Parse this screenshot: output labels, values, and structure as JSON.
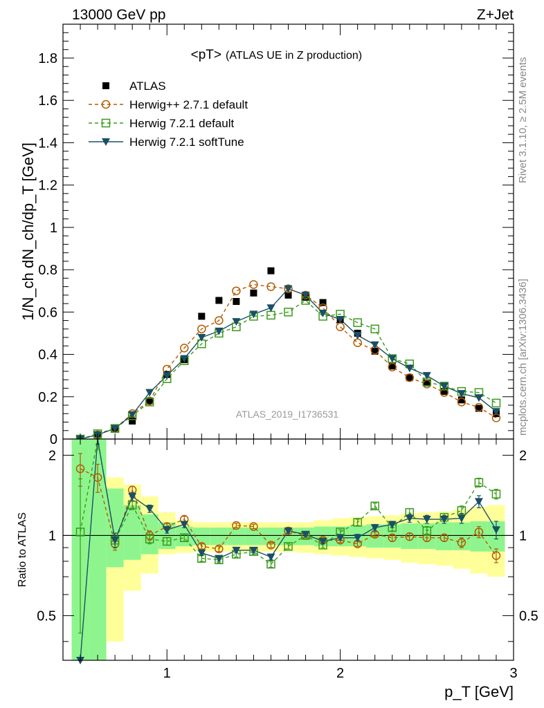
{
  "header": {
    "left": "13000 GeV pp",
    "right": "Z+Jet"
  },
  "side_labels": {
    "rivet": "Rivet 3.1.10, ≥ 2.5M events",
    "mcplots": "mcplots.cern.ch [arXiv:1306.3436]"
  },
  "colors": {
    "atlas": "#000000",
    "herwigpp": "#b35a00",
    "herwig_default": "#3a9a1a",
    "herwig_softtune": "#1a4f66",
    "band_inner": "#8ef58e",
    "band_outer": "#ffff99"
  },
  "chart_data": [
    {
      "type": "scatter",
      "title": "<pT>",
      "subtitle": "(ATLAS UE in Z production)",
      "watermark": "ATLAS_2019_I1736531",
      "ylabel": "1/N_ch dN_ch/dp_T [GeV]",
      "xlabel": "",
      "xlim": [
        0.4,
        3.0
      ],
      "ylim": [
        0,
        1.96
      ],
      "x_ticks": [],
      "y_ticks": [
        {
          "v": 0,
          "label": "0"
        },
        {
          "v": 0.2,
          "label": "0.2"
        },
        {
          "v": 0.4,
          "label": "0.4"
        },
        {
          "v": 0.6,
          "label": "0.6"
        },
        {
          "v": 0.8,
          "label": "0.8"
        },
        {
          "v": 1.0,
          "label": "1"
        },
        {
          "v": 1.2,
          "label": "1.2"
        },
        {
          "v": 1.4,
          "label": "1.4"
        },
        {
          "v": 1.6,
          "label": "1.6"
        },
        {
          "v": 1.8,
          "label": "1.8"
        }
      ],
      "legend_position": "top-left",
      "x": [
        0.5,
        0.6,
        0.7,
        0.8,
        0.9,
        1.0,
        1.1,
        1.2,
        1.3,
        1.4,
        1.5,
        1.6,
        1.7,
        1.8,
        1.9,
        2.0,
        2.1,
        2.2,
        2.3,
        2.4,
        2.5,
        2.6,
        2.7,
        2.8,
        2.9
      ],
      "series": [
        {
          "name": "ATLAS",
          "style": "atlas",
          "values": [
            0.0,
            0.02,
            0.05,
            0.085,
            0.18,
            0.305,
            0.375,
            0.58,
            0.655,
            0.65,
            0.69,
            0.795,
            0.68,
            0.67,
            0.645,
            0.565,
            0.5,
            0.415,
            0.345,
            0.29,
            0.265,
            0.225,
            0.185,
            0.145,
            0.12
          ]
        },
        {
          "name": "Herwig++ 2.7.1 default",
          "style": "herwigpp",
          "values": [
            0.0,
            0.02,
            0.05,
            0.12,
            0.18,
            0.33,
            0.43,
            0.52,
            0.56,
            0.7,
            0.73,
            0.72,
            0.71,
            0.68,
            0.62,
            0.53,
            0.455,
            0.42,
            0.34,
            0.29,
            0.26,
            0.22,
            0.175,
            0.15,
            0.1
          ]
        },
        {
          "name": "Herwig 7.2.1 default",
          "style": "herwig_default",
          "values": [
            0.0,
            0.025,
            0.05,
            0.11,
            0.175,
            0.285,
            0.37,
            0.45,
            0.5,
            0.53,
            0.58,
            0.585,
            0.6,
            0.655,
            0.58,
            0.59,
            0.55,
            0.52,
            0.38,
            0.355,
            0.27,
            0.25,
            0.225,
            0.22,
            0.17
          ]
        },
        {
          "name": "Herwig 7.2.1 softTune",
          "style": "herwig_softtune",
          "values": [
            0.0,
            0.02,
            0.05,
            0.115,
            0.22,
            0.3,
            0.38,
            0.48,
            0.51,
            0.555,
            0.59,
            0.62,
            0.71,
            0.68,
            0.595,
            0.565,
            0.49,
            0.445,
            0.38,
            0.335,
            0.3,
            0.25,
            0.215,
            0.195,
            0.13
          ]
        }
      ]
    },
    {
      "type": "scatter",
      "title": "",
      "ylabel": "Ratio to ATLAS",
      "xlabel": "p_T [GeV]",
      "xlim": [
        0.4,
        3.0
      ],
      "ylim": [
        0.34,
        2.3
      ],
      "scale": "log",
      "x_ticks": [
        {
          "v": 1,
          "label": "1"
        },
        {
          "v": 2,
          "label": "2"
        },
        {
          "v": 3,
          "label": "3"
        }
      ],
      "y_ticks": [
        {
          "v": 0.5,
          "label": "0.5"
        },
        {
          "v": 1,
          "label": "1"
        },
        {
          "v": 2,
          "label": "2"
        }
      ],
      "x": [
        0.5,
        0.6,
        0.7,
        0.8,
        0.9,
        1.0,
        1.1,
        1.2,
        1.3,
        1.4,
        1.5,
        1.6,
        1.7,
        1.8,
        1.9,
        2.0,
        2.1,
        2.2,
        2.3,
        2.4,
        2.5,
        2.6,
        2.7,
        2.8,
        2.9
      ],
      "bands": [
        {
          "x0": 0.45,
          "x1": 0.55,
          "inner": [
            0.34,
            2.3
          ],
          "outer": [
            0.34,
            2.3
          ]
        },
        {
          "x0": 0.55,
          "x1": 0.65,
          "inner": [
            0.34,
            2.3
          ],
          "outer": [
            0.34,
            2.3
          ]
        },
        {
          "x0": 0.65,
          "x1": 0.75,
          "inner": [
            0.76,
            1.5
          ],
          "outer": [
            0.4,
            1.65
          ]
        },
        {
          "x0": 0.75,
          "x1": 0.85,
          "inner": [
            0.81,
            1.3
          ],
          "outer": [
            0.62,
            1.55
          ]
        },
        {
          "x0": 0.85,
          "x1": 0.95,
          "inner": [
            0.85,
            1.2
          ],
          "outer": [
            0.72,
            1.4
          ]
        },
        {
          "x0": 0.95,
          "x1": 1.05,
          "inner": [
            0.89,
            1.12
          ],
          "outer": [
            0.85,
            1.22
          ]
        },
        {
          "x0": 1.05,
          "x1": 1.15,
          "inner": [
            0.91,
            1.08
          ],
          "outer": [
            0.86,
            1.14
          ]
        },
        {
          "x0": 1.15,
          "x1": 1.25,
          "inner": [
            0.92,
            1.07
          ],
          "outer": [
            0.87,
            1.12
          ]
        },
        {
          "x0": 1.25,
          "x1": 1.35,
          "inner": [
            0.92,
            1.07
          ],
          "outer": [
            0.87,
            1.12
          ]
        },
        {
          "x0": 1.35,
          "x1": 1.45,
          "inner": [
            0.92,
            1.07
          ],
          "outer": [
            0.87,
            1.12
          ]
        },
        {
          "x0": 1.45,
          "x1": 1.55,
          "inner": [
            0.92,
            1.07
          ],
          "outer": [
            0.87,
            1.12
          ]
        },
        {
          "x0": 1.55,
          "x1": 1.65,
          "inner": [
            0.92,
            1.07
          ],
          "outer": [
            0.87,
            1.12
          ]
        },
        {
          "x0": 1.65,
          "x1": 1.75,
          "inner": [
            0.92,
            1.07
          ],
          "outer": [
            0.87,
            1.12
          ]
        },
        {
          "x0": 1.75,
          "x1": 1.85,
          "inner": [
            0.92,
            1.07
          ],
          "outer": [
            0.86,
            1.12
          ]
        },
        {
          "x0": 1.85,
          "x1": 1.95,
          "inner": [
            0.91,
            1.08
          ],
          "outer": [
            0.85,
            1.14
          ]
        },
        {
          "x0": 1.95,
          "x1": 2.05,
          "inner": [
            0.91,
            1.08
          ],
          "outer": [
            0.84,
            1.16
          ]
        },
        {
          "x0": 2.05,
          "x1": 2.15,
          "inner": [
            0.91,
            1.09
          ],
          "outer": [
            0.83,
            1.17
          ]
        },
        {
          "x0": 2.15,
          "x1": 2.25,
          "inner": [
            0.9,
            1.1
          ],
          "outer": [
            0.82,
            1.18
          ]
        },
        {
          "x0": 2.25,
          "x1": 2.35,
          "inner": [
            0.9,
            1.1
          ],
          "outer": [
            0.81,
            1.19
          ]
        },
        {
          "x0": 2.35,
          "x1": 2.45,
          "inner": [
            0.89,
            1.11
          ],
          "outer": [
            0.79,
            1.21
          ]
        },
        {
          "x0": 2.45,
          "x1": 2.55,
          "inner": [
            0.89,
            1.11
          ],
          "outer": [
            0.78,
            1.22
          ]
        },
        {
          "x0": 2.55,
          "x1": 2.65,
          "inner": [
            0.88,
            1.12
          ],
          "outer": [
            0.77,
            1.23
          ]
        },
        {
          "x0": 2.65,
          "x1": 2.75,
          "inner": [
            0.88,
            1.12
          ],
          "outer": [
            0.75,
            1.25
          ]
        },
        {
          "x0": 2.75,
          "x1": 2.85,
          "inner": [
            0.87,
            1.13
          ],
          "outer": [
            0.72,
            1.28
          ]
        },
        {
          "x0": 2.85,
          "x1": 2.95,
          "inner": [
            0.87,
            1.13
          ],
          "outer": [
            0.7,
            1.3
          ]
        }
      ],
      "series": [
        {
          "name": "Herwig++ 2.7.1 default",
          "style": "herwigpp",
          "values": [
            1.78,
            1.65,
            0.93,
            1.48,
            1.0,
            1.08,
            1.15,
            0.91,
            0.89,
            1.09,
            1.08,
            0.92,
            1.04,
            1.0,
            0.96,
            0.96,
            0.93,
            1.01,
            0.98,
            0.99,
            0.98,
            0.98,
            0.94,
            1.03,
            0.84
          ],
          "errors": [
            0.25,
            0.2,
            0.05,
            0.05,
            0.04,
            0.03,
            0.03,
            0.02,
            0.02,
            0.02,
            0.02,
            0.02,
            0.02,
            0.02,
            0.02,
            0.02,
            0.02,
            0.02,
            0.03,
            0.03,
            0.03,
            0.03,
            0.04,
            0.05,
            0.05
          ]
        },
        {
          "name": "Herwig 7.2.1 default",
          "style": "herwig_default",
          "values": [
            1.03,
            2.4,
            0.96,
            1.3,
            0.97,
            0.95,
            0.98,
            0.82,
            0.81,
            0.85,
            0.87,
            0.78,
            0.91,
            1.0,
            0.92,
            1.03,
            1.12,
            1.29,
            1.07,
            1.22,
            1.04,
            1.17,
            1.24,
            1.58,
            1.43
          ],
          "errors": [
            0.6,
            0.3,
            0.06,
            0.05,
            0.04,
            0.03,
            0.03,
            0.02,
            0.02,
            0.02,
            0.02,
            0.02,
            0.02,
            0.02,
            0.02,
            0.02,
            0.03,
            0.03,
            0.03,
            0.04,
            0.04,
            0.04,
            0.05,
            0.06,
            0.06
          ]
        },
        {
          "name": "Herwig 7.2.1 softTune",
          "style": "herwig_softtune",
          "values": [
            0.0,
            2.5,
            0.96,
            1.4,
            1.26,
            1.05,
            1.1,
            0.86,
            0.82,
            0.88,
            0.88,
            0.83,
            1.04,
            1.01,
            0.95,
            0.98,
            0.98,
            1.07,
            1.1,
            1.16,
            1.15,
            1.15,
            1.16,
            1.34,
            1.05
          ],
          "errors": [
            0.0,
            0.3,
            0.06,
            0.05,
            0.04,
            0.03,
            0.03,
            0.02,
            0.02,
            0.02,
            0.02,
            0.02,
            0.02,
            0.02,
            0.02,
            0.02,
            0.03,
            0.03,
            0.03,
            0.04,
            0.04,
            0.04,
            0.05,
            0.07,
            0.08
          ]
        }
      ]
    }
  ]
}
